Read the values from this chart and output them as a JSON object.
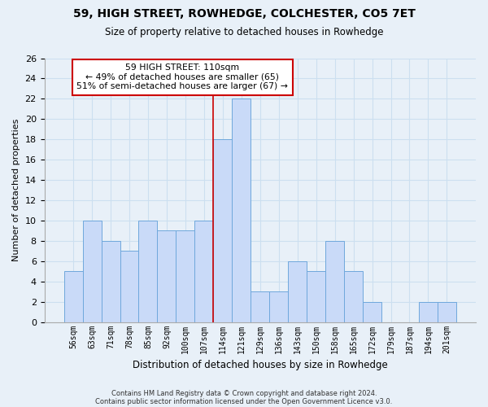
{
  "title1": "59, HIGH STREET, ROWHEDGE, COLCHESTER, CO5 7ET",
  "title2": "Size of property relative to detached houses in Rowhedge",
  "xlabel": "Distribution of detached houses by size in Rowhedge",
  "ylabel": "Number of detached properties",
  "categories": [
    "56sqm",
    "63sqm",
    "71sqm",
    "78sqm",
    "85sqm",
    "92sqm",
    "100sqm",
    "107sqm",
    "114sqm",
    "121sqm",
    "129sqm",
    "136sqm",
    "143sqm",
    "150sqm",
    "158sqm",
    "165sqm",
    "172sqm",
    "179sqm",
    "187sqm",
    "194sqm",
    "201sqm"
  ],
  "values": [
    5,
    10,
    8,
    7,
    10,
    9,
    9,
    10,
    18,
    22,
    3,
    3,
    6,
    5,
    8,
    5,
    2,
    0,
    0,
    2,
    2
  ],
  "bar_color": "#c9daf8",
  "bar_edge_color": "#6fa8dc",
  "vline_color": "#cc0000",
  "annotation_text": "59 HIGH STREET: 110sqm\n← 49% of detached houses are smaller (65)\n51% of semi-detached houses are larger (67) →",
  "annotation_box_color": "#ffffff",
  "annotation_box_edge": "#cc0000",
  "ylim": [
    0,
    26
  ],
  "yticks": [
    0,
    2,
    4,
    6,
    8,
    10,
    12,
    14,
    16,
    18,
    20,
    22,
    24,
    26
  ],
  "footer1": "Contains HM Land Registry data © Crown copyright and database right 2024.",
  "footer2": "Contains public sector information licensed under the Open Government Licence v3.0.",
  "grid_color": "#ccdff0",
  "background_color": "#e8f0f8"
}
